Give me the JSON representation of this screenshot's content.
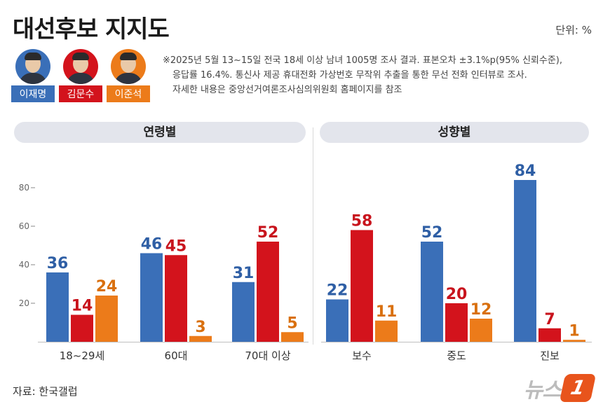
{
  "title": "대선후보 지지도",
  "unit": "단위: %",
  "candidates": [
    {
      "name": "이재명",
      "color": "#3a6fb8"
    },
    {
      "name": "김문수",
      "color": "#d3131c"
    },
    {
      "name": "이준석",
      "color": "#ec7b1a"
    }
  ],
  "note": {
    "line1": "※2025년 5월 13~15일 전국 18세 이상 남녀 1005명 조사 결과. 표본오차 ±3.1%p(95% 신뢰수준),",
    "line2": "응답률 16.4%. 통신사 제공 휴대전화 가상번호 무작위 추출을 통한 무선 전화 인터뷰로 조사.",
    "line3": "자세한 내용은 중앙선거여론조사심의위원회 홈페이지를 참조"
  },
  "source": "자료: 한국갤럽",
  "logo": {
    "text": "뉴스",
    "badge": "1"
  },
  "chart_data": [
    {
      "type": "bar",
      "title": "연령별",
      "categories": [
        "18~29세",
        "60대",
        "70대 이상"
      ],
      "series": [
        {
          "name": "이재명",
          "values": [
            36,
            46,
            31
          ]
        },
        {
          "name": "김문수",
          "values": [
            14,
            45,
            52
          ]
        },
        {
          "name": "이준석",
          "values": [
            24,
            3,
            5
          ]
        }
      ],
      "yticks": [
        20,
        40,
        60,
        80
      ],
      "ylim": [
        0,
        100
      ]
    },
    {
      "type": "bar",
      "title": "성향별",
      "categories": [
        "보수",
        "중도",
        "진보"
      ],
      "series": [
        {
          "name": "이재명",
          "values": [
            22,
            52,
            84
          ]
        },
        {
          "name": "김문수",
          "values": [
            58,
            20,
            7
          ]
        },
        {
          "name": "이준석",
          "values": [
            11,
            12,
            1
          ]
        }
      ],
      "ylim": [
        0,
        100
      ]
    }
  ]
}
